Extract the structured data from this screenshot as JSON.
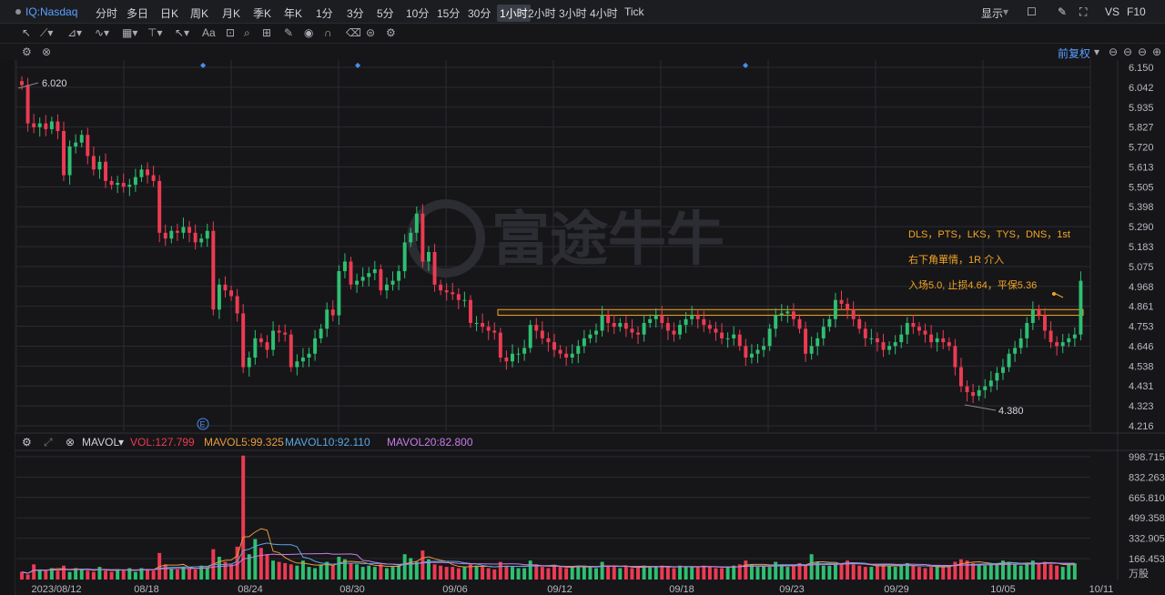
{
  "toolbar": {
    "symbol": "IQ:Nasdaq",
    "timeframes": [
      "分时",
      "多日",
      "日K",
      "周K",
      "月K",
      "季K",
      "年K",
      "1分",
      "3分",
      "5分",
      "10分",
      "15分",
      "30分",
      "1小时",
      "2小时",
      "3小时",
      "4小时",
      "Tick"
    ],
    "active": "1小时",
    "right": [
      "显示",
      "VS",
      "F10"
    ],
    "fuquan": "前复权"
  },
  "indicator": {
    "name": "MAVOL",
    "vol": "VOL:127.799",
    "ma5": "MAVOL5:99.325",
    "ma10": "MAVOL10:92.110",
    "ma20": "MAVOL20:82.800"
  },
  "colors": {
    "up": "#2fbf71",
    "down": "#ec3b52",
    "orange": "#f5a623",
    "ma5": "#e89b3c",
    "ma10": "#5aa7e0",
    "ma20": "#c87de6",
    "grid": "#2a2b31",
    "bg": "#161619"
  },
  "chart_data": {
    "type": "candlestick",
    "price_axis": [
      "6.150",
      "6.042",
      "5.935",
      "5.827",
      "5.720",
      "5.613",
      "5.505",
      "5.398",
      "5.290",
      "5.183",
      "5.075",
      "4.968",
      "4.861",
      "4.753",
      "4.646",
      "4.538",
      "4.431",
      "4.323",
      "4.216"
    ],
    "volume_axis": [
      "998.715",
      "832.263",
      "665.810",
      "499.358",
      "332.905",
      "166.453"
    ],
    "volume_unit": "万股",
    "x_labels": [
      "2023/08/12",
      "08/18",
      "08/24",
      "08/30",
      "09/06",
      "09/12",
      "09/18",
      "09/23",
      "09/29",
      "10/05",
      "10/11"
    ],
    "ylim": [
      4.216,
      6.15
    ],
    "high_label": "6.020",
    "low_label": "4.380",
    "resistance_band": [
      4.82,
      4.85
    ],
    "annotations": [
      "DLS，PTS，LKS，TYS，DNS，1st",
      "右下角單情，1R 介入",
      "入场5.0, 止损4.64，平保5.36"
    ],
    "watermark": "富途牛牛",
    "closes": [
      6.02,
      5.82,
      5.8,
      5.82,
      5.79,
      5.83,
      5.78,
      5.55,
      5.7,
      5.72,
      5.76,
      5.65,
      5.58,
      5.62,
      5.52,
      5.5,
      5.51,
      5.49,
      5.5,
      5.54,
      5.58,
      5.55,
      5.52,
      5.25,
      5.22,
      5.26,
      5.25,
      5.28,
      5.25,
      5.2,
      5.22,
      5.26,
      4.85,
      4.98,
      4.95,
      4.92,
      4.83,
      4.55,
      4.6,
      4.7,
      4.68,
      4.64,
      4.74,
      4.73,
      4.72,
      4.55,
      4.58,
      4.6,
      4.62,
      4.7,
      4.75,
      4.85,
      4.82,
      5.05,
      5.1,
      4.98,
      5.0,
      5.02,
      5.04,
      5.06,
      4.95,
      4.98,
      5.0,
      5.05,
      5.2,
      5.25,
      5.35,
      5.1,
      5.15,
      4.98,
      4.95,
      4.94,
      4.93,
      4.9,
      4.9,
      4.78,
      4.78,
      4.76,
      4.74,
      4.73,
      4.6,
      4.58,
      4.62,
      4.62,
      4.65,
      4.77,
      4.74,
      4.7,
      4.68,
      4.64,
      4.62,
      4.6,
      4.62,
      4.66,
      4.7,
      4.72,
      4.74,
      4.82,
      4.78,
      4.76,
      4.78,
      4.75,
      4.73,
      4.72,
      4.78,
      4.8,
      4.82,
      4.78,
      4.74,
      4.72,
      4.77,
      4.8,
      4.82,
      4.8,
      4.77,
      4.75,
      4.73,
      4.7,
      4.7,
      4.72,
      4.66,
      4.6,
      4.62,
      4.64,
      4.66,
      4.75,
      4.82,
      4.83,
      4.84,
      4.8,
      4.75,
      4.62,
      4.66,
      4.7,
      4.76,
      4.8,
      4.9,
      4.88,
      4.85,
      4.8,
      4.75,
      4.7,
      4.7,
      4.68,
      4.64,
      4.66,
      4.68,
      4.72,
      4.78,
      4.76,
      4.74,
      4.72,
      4.68,
      4.7,
      4.68,
      4.66,
      4.55,
      4.45,
      4.42,
      4.4,
      4.43,
      4.45,
      4.48,
      4.52,
      4.55,
      4.62,
      4.65,
      4.7,
      4.78,
      4.85,
      4.82,
      4.74,
      4.68,
      4.66,
      4.68,
      4.7,
      4.72,
      5.0
    ],
    "volumes": [
      60,
      40,
      120,
      80,
      70,
      90,
      70,
      110,
      60,
      90,
      80,
      70,
      60,
      100,
      70,
      60,
      80,
      70,
      90,
      60,
      90,
      80,
      70,
      210,
      120,
      90,
      80,
      100,
      90,
      80,
      110,
      90,
      240,
      180,
      140,
      120,
      260,
      980,
      200,
      320,
      250,
      200,
      150,
      140,
      130,
      120,
      110,
      150,
      100,
      90,
      120,
      140,
      110,
      180,
      160,
      130,
      120,
      100,
      110,
      100,
      120,
      90,
      100,
      110,
      200,
      170,
      140,
      230,
      160,
      120,
      110,
      100,
      100,
      90,
      100,
      120,
      110,
      100,
      90,
      80,
      140,
      110,
      100,
      90,
      90,
      150,
      120,
      100,
      90,
      110,
      100,
      90,
      100,
      110,
      100,
      100,
      90,
      140,
      110,
      100,
      90,
      100,
      90,
      100,
      110,
      100,
      100,
      110,
      100,
      90,
      110,
      100,
      100,
      100,
      110,
      100,
      90,
      90,
      100,
      110,
      120,
      150,
      120,
      100,
      110,
      100,
      140,
      120,
      100,
      110,
      130,
      120,
      200,
      140,
      110,
      110,
      120,
      130,
      150,
      120,
      110,
      100,
      100,
      110,
      120,
      110,
      100,
      110,
      130,
      110,
      100,
      90,
      100,
      110,
      100,
      110,
      140,
      160,
      150,
      130,
      120,
      110,
      130,
      120,
      150,
      140,
      120,
      110,
      130,
      150,
      130,
      140,
      120,
      110,
      100,
      120,
      128
    ]
  }
}
